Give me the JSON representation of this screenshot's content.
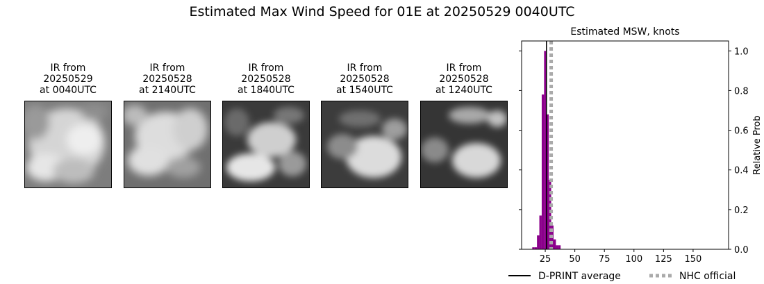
{
  "suptitle": "Estimated Max Wind Speed for 01E at 20250529 0040UTC",
  "ir_panels": [
    {
      "line1": "IR from",
      "line2": "20250529",
      "line3": "at 0040UTC"
    },
    {
      "line1": "IR from",
      "line2": "20250528",
      "line3": "at 2140UTC"
    },
    {
      "line1": "IR from",
      "line2": "20250528",
      "line3": "at 1840UTC"
    },
    {
      "line1": "IR from",
      "line2": "20250528",
      "line3": "at 1540UTC"
    },
    {
      "line1": "IR from",
      "line2": "20250528",
      "line3": "at 1240UTC"
    }
  ],
  "chart_data": {
    "type": "bar",
    "title": "Estimated MSW, knots",
    "xlabel": "",
    "ylabel": "Relative Prob",
    "xlim": [
      5,
      180
    ],
    "ylim": [
      0,
      1.05
    ],
    "xticks": [
      25,
      50,
      75,
      100,
      125,
      150
    ],
    "yticks": [
      0.0,
      0.2,
      0.4,
      0.6,
      0.8,
      1.0
    ],
    "ytick_labels": [
      "0.0",
      "0.2",
      "0.4",
      "0.6",
      "0.8",
      "1.0"
    ],
    "bar_width": 2,
    "bar_color": "#8b008b",
    "bars": [
      {
        "x": 15,
        "y": 0.01
      },
      {
        "x": 17,
        "y": 0.01
      },
      {
        "x": 19,
        "y": 0.07
      },
      {
        "x": 21,
        "y": 0.17
      },
      {
        "x": 23,
        "y": 0.78
      },
      {
        "x": 25,
        "y": 1.0
      },
      {
        "x": 27,
        "y": 0.68
      },
      {
        "x": 29,
        "y": 0.35
      },
      {
        "x": 31,
        "y": 0.12
      },
      {
        "x": 33,
        "y": 0.05
      },
      {
        "x": 35,
        "y": 0.02
      },
      {
        "x": 37,
        "y": 0.02
      }
    ],
    "dprint_average": 26,
    "nhc_official": 30,
    "legend": [
      {
        "label": "D-PRINT average",
        "color": "#000000",
        "style": "solid"
      },
      {
        "label": "NHC official",
        "color": "#aaaaaa",
        "style": "dotted"
      }
    ]
  }
}
